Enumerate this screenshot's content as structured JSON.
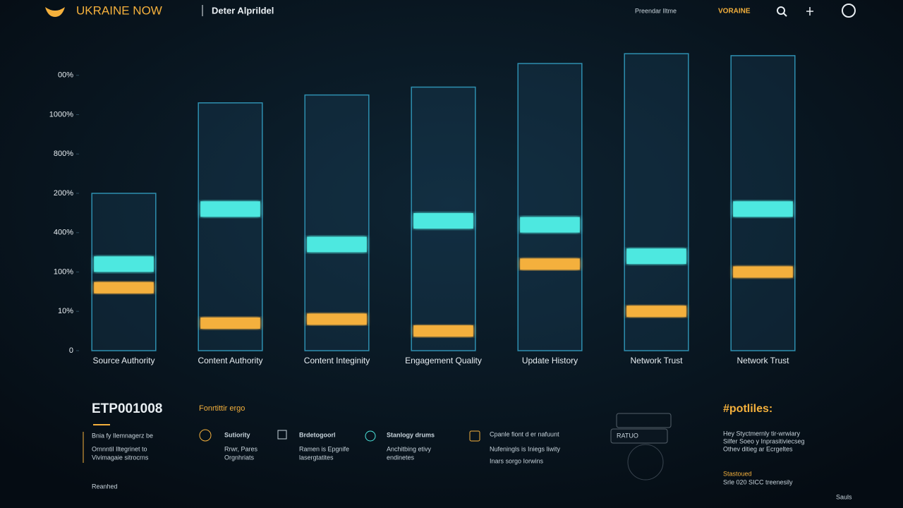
{
  "header": {
    "brand": "UKRAINE NOW",
    "subtitle": "Deter Alprildel",
    "nav": [
      "Preendar Iltme",
      "VORAINE"
    ]
  },
  "chart_data": {
    "type": "bar",
    "categories": [
      "Source Authority",
      "Content Authority",
      "Content Integinity",
      "Engagement Quality",
      "Update History",
      "Network Trust",
      "Network Trust"
    ],
    "values": [
      4.0,
      6.3,
      6.5,
      6.7,
      7.3,
      7.55,
      7.5
    ],
    "color": "#2e8fb0",
    "series": [
      {
        "color": "#4de8e0",
        "values": [
          2.2,
          3.6,
          2.7,
          3.3,
          3.2,
          2.4,
          3.6
        ]
      },
      {
        "color": "#f4b03c",
        "values": [
          1.6,
          0.7,
          0.8,
          0.5,
          2.2,
          1.0,
          2.0
        ]
      }
    ],
    "ylim": [
      0,
      8
    ],
    "yticks": [
      0,
      {
        "value": 1,
        "label": "10%"
      },
      {
        "value": 2,
        "label": "100%"
      },
      {
        "value": 3,
        "label": "400%"
      },
      {
        "value": 4,
        "label": "200%"
      },
      {
        "value": 5,
        "label": "800%"
      },
      {
        "value": 6,
        "label": "1000%"
      },
      {
        "value": 7,
        "label": "00%"
      }
    ],
    "grid": false
  },
  "footer": {
    "code": "ETP001008",
    "tag": "Fonrtittir ergo",
    "intro": [
      "Bnia fy Ilemnagerz be",
      "Ornnntil Iltegrinet to",
      "Vivimagaie sitrocrns"
    ],
    "note": "Reanhed",
    "items": [
      {
        "title": "Sutiority",
        "text": [
          "Rrwr, Pares",
          "Orgnhriats"
        ]
      },
      {
        "title": "Brdetogoorl",
        "text": [
          "Ramen is Epgnife",
          "lasergtatites"
        ]
      },
      {
        "title": "Stanlogy drums",
        "text": [
          "Anchitbing etivy",
          "endinetes"
        ]
      },
      {
        "title": "Cpanle fiont d er nafuunt",
        "text": [
          "Nufeningls is Iniegs liwity",
          "Inars sorgo Iorwins"
        ]
      }
    ],
    "ratio": "RATUO",
    "profiles": {
      "title": "#potliles:",
      "lines": [
        "Hey Styctmernly tir-wrwiary",
        "Silfer Soeo y Inprasitiviecseg",
        "Othev ditieg ar Ecrgeltes"
      ]
    },
    "status": [
      "Stastoued",
      "Srle 020 SICC treenesily"
    ],
    "corner": "Sauls"
  }
}
